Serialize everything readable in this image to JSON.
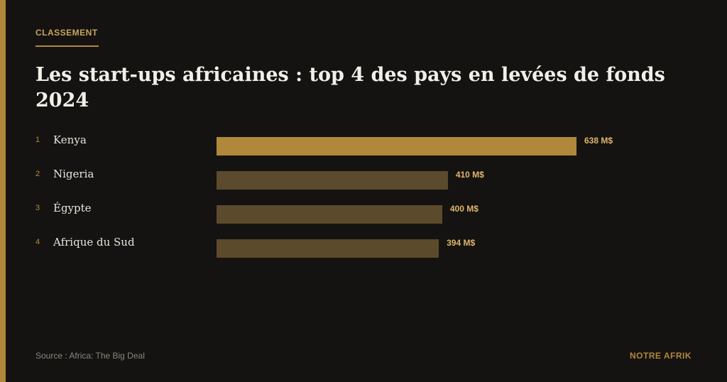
{
  "header": {
    "kicker": "CLASSEMENT",
    "title": "Les start-ups africaines : top 4 des pays en levées de fonds 2024"
  },
  "footer": {
    "source": "Source : Africa: The Big Deal",
    "brand": "NOTRE AFRIK"
  },
  "colors": {
    "accent": "#b0883c",
    "bar_highlight": "#b0883c",
    "bar_default": "#5b4a2c",
    "background": "#151311"
  },
  "chart_data": {
    "type": "bar",
    "orientation": "horizontal",
    "title": "Les start-ups africaines : top 4 des pays en levées de fonds 2024",
    "xlabel": "",
    "ylabel": "",
    "unit": "M$",
    "grid": false,
    "ranks": [
      "1",
      "2",
      "3",
      "4"
    ],
    "categories": [
      "Kenya",
      "Nigeria",
      "Égypte",
      "Afrique du Sud"
    ],
    "values": [
      638,
      410,
      400,
      394
    ],
    "value_labels": [
      "638 M$",
      "410 M$",
      "400 M$",
      "394 M$"
    ]
  }
}
